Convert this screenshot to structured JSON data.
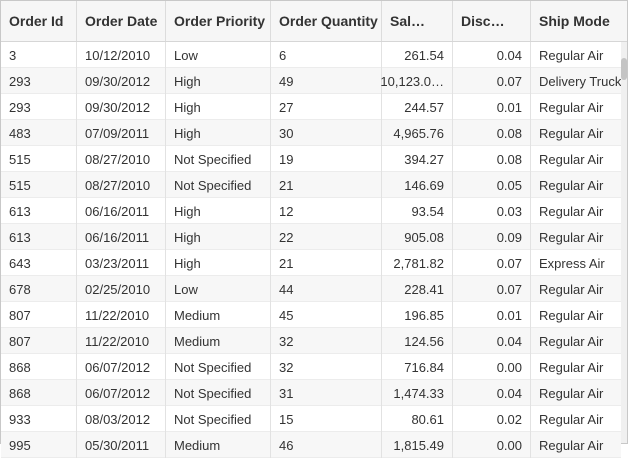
{
  "columns": [
    "Order Id",
    "Order Date",
    "Order Priority",
    "Order Quantity",
    "Sal…",
    "Disc…",
    "Ship Mode"
  ],
  "rows": [
    [
      "3",
      "10/12/2010",
      "Low",
      "6",
      "261.54",
      "0.04",
      "Regular Air"
    ],
    [
      "293",
      "09/30/2012",
      "High",
      "49",
      "10,123.0…",
      "0.07",
      "Delivery Truck"
    ],
    [
      "293",
      "09/30/2012",
      "High",
      "27",
      "244.57",
      "0.01",
      "Regular Air"
    ],
    [
      "483",
      "07/09/2011",
      "High",
      "30",
      "4,965.76",
      "0.08",
      "Regular Air"
    ],
    [
      "515",
      "08/27/2010",
      "Not Specified",
      "19",
      "394.27",
      "0.08",
      "Regular Air"
    ],
    [
      "515",
      "08/27/2010",
      "Not Specified",
      "21",
      "146.69",
      "0.05",
      "Regular Air"
    ],
    [
      "613",
      "06/16/2011",
      "High",
      "12",
      "93.54",
      "0.03",
      "Regular Air"
    ],
    [
      "613",
      "06/16/2011",
      "High",
      "22",
      "905.08",
      "0.09",
      "Regular Air"
    ],
    [
      "643",
      "03/23/2011",
      "High",
      "21",
      "2,781.82",
      "0.07",
      "Express Air"
    ],
    [
      "678",
      "02/25/2010",
      "Low",
      "44",
      "228.41",
      "0.07",
      "Regular Air"
    ],
    [
      "807",
      "11/22/2010",
      "Medium",
      "45",
      "196.85",
      "0.01",
      "Regular Air"
    ],
    [
      "807",
      "11/22/2010",
      "Medium",
      "32",
      "124.56",
      "0.04",
      "Regular Air"
    ],
    [
      "868",
      "06/07/2012",
      "Not Specified",
      "32",
      "716.84",
      "0.00",
      "Regular Air"
    ],
    [
      "868",
      "06/07/2012",
      "Not Specified",
      "31",
      "1,474.33",
      "0.04",
      "Regular Air"
    ],
    [
      "933",
      "08/03/2012",
      "Not Specified",
      "15",
      "80.61",
      "0.02",
      "Regular Air"
    ],
    [
      "995",
      "05/30/2011",
      "Medium",
      "46",
      "1,815.49",
      "0.00",
      "Regular Air"
    ]
  ]
}
